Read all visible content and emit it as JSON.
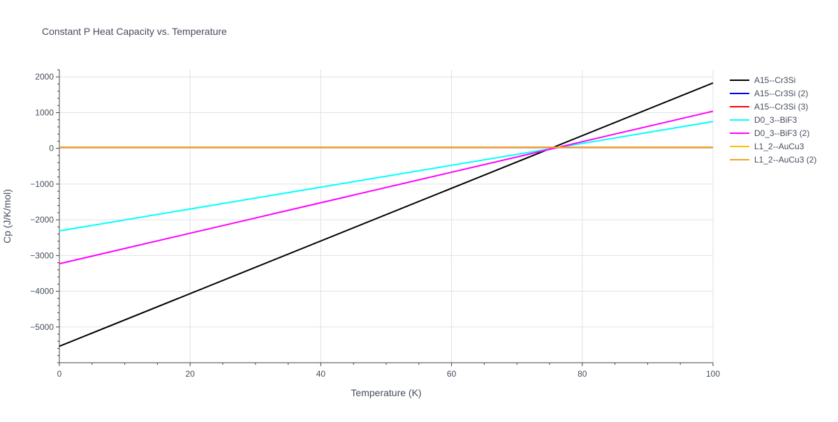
{
  "chart_data": {
    "type": "line",
    "title": "Constant P Heat Capacity vs. Temperature",
    "xlabel": "Temperature (K)",
    "ylabel": "Cp (J/K/mol)",
    "xlim": [
      0,
      100
    ],
    "ylim": [
      -6000,
      2200
    ],
    "x_ticks": [
      0,
      20,
      40,
      60,
      80,
      100
    ],
    "x_tick_labels": [
      "0",
      "20",
      "40",
      "60",
      "80",
      "100"
    ],
    "y_ticks": [
      -5000,
      -4000,
      -3000,
      -2000,
      -1000,
      0,
      1000,
      2000
    ],
    "y_tick_labels": [
      "−5000",
      "−4000",
      "−3000",
      "−2000",
      "−1000",
      "0",
      "1000",
      "2000"
    ],
    "grid": true,
    "legend_position": "right",
    "series": [
      {
        "name": "A15--Cr3Si",
        "color": "#000000",
        "x": [
          0,
          100
        ],
        "y": [
          -5540,
          1830
        ]
      },
      {
        "name": "A15--Cr3Si (2)",
        "color": "#0000ff",
        "x": [
          0,
          100
        ],
        "y": [
          30,
          30
        ]
      },
      {
        "name": "A15--Cr3Si (3)",
        "color": "#ff0000",
        "x": [
          0,
          100
        ],
        "y": [
          30,
          30
        ]
      },
      {
        "name": "D0_3--BiF3",
        "color": "#00ffff",
        "x": [
          0,
          100
        ],
        "y": [
          -2310,
          750
        ]
      },
      {
        "name": "D0_3--BiF3 (2)",
        "color": "#ff00ff",
        "x": [
          0,
          100
        ],
        "y": [
          -3230,
          1040
        ]
      },
      {
        "name": "L1_2--AuCu3",
        "color": "#ffbf00",
        "x": [
          0,
          100
        ],
        "y": [
          30,
          30
        ]
      },
      {
        "name": "L1_2--AuCu3 (2)",
        "color": "#f0a030",
        "x": [
          0,
          100
        ],
        "y": [
          30,
          30
        ]
      }
    ]
  }
}
